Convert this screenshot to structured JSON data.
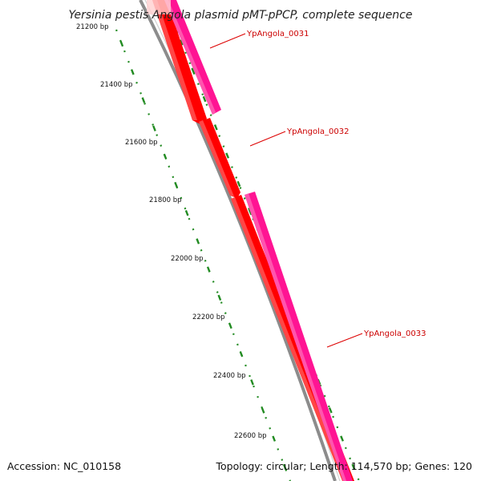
{
  "header": {
    "title": "Yersinia pestis Angola plasmid pMT-pPCP, complete sequence"
  },
  "footer": {
    "accession": "Accession: NC_010158",
    "summary": "Topology: circular; Length: 114,570 bp; Genes: 120"
  },
  "map": {
    "ticks": [
      {
        "label": "21200 bp"
      },
      {
        "label": "21400 bp"
      },
      {
        "label": "21600 bp"
      },
      {
        "label": "21800 bp"
      },
      {
        "label": "22000 bp"
      },
      {
        "label": "22200 bp"
      },
      {
        "label": "22400 bp"
      },
      {
        "label": "22600 bp"
      }
    ],
    "genes": [
      {
        "label": "YpAngola_0031",
        "color": "#ff1493"
      },
      {
        "label": "YpAngola_0032",
        "color": "#ff0000"
      },
      {
        "label": "YpAngola_0033",
        "color": "#ff1493"
      }
    ],
    "colors": {
      "backbone": "#8c8c8c",
      "tick": "#228b22",
      "label_line": "#dd0000",
      "forward_gene": "#ff0000",
      "reverse_gene": "#ff1493"
    }
  }
}
